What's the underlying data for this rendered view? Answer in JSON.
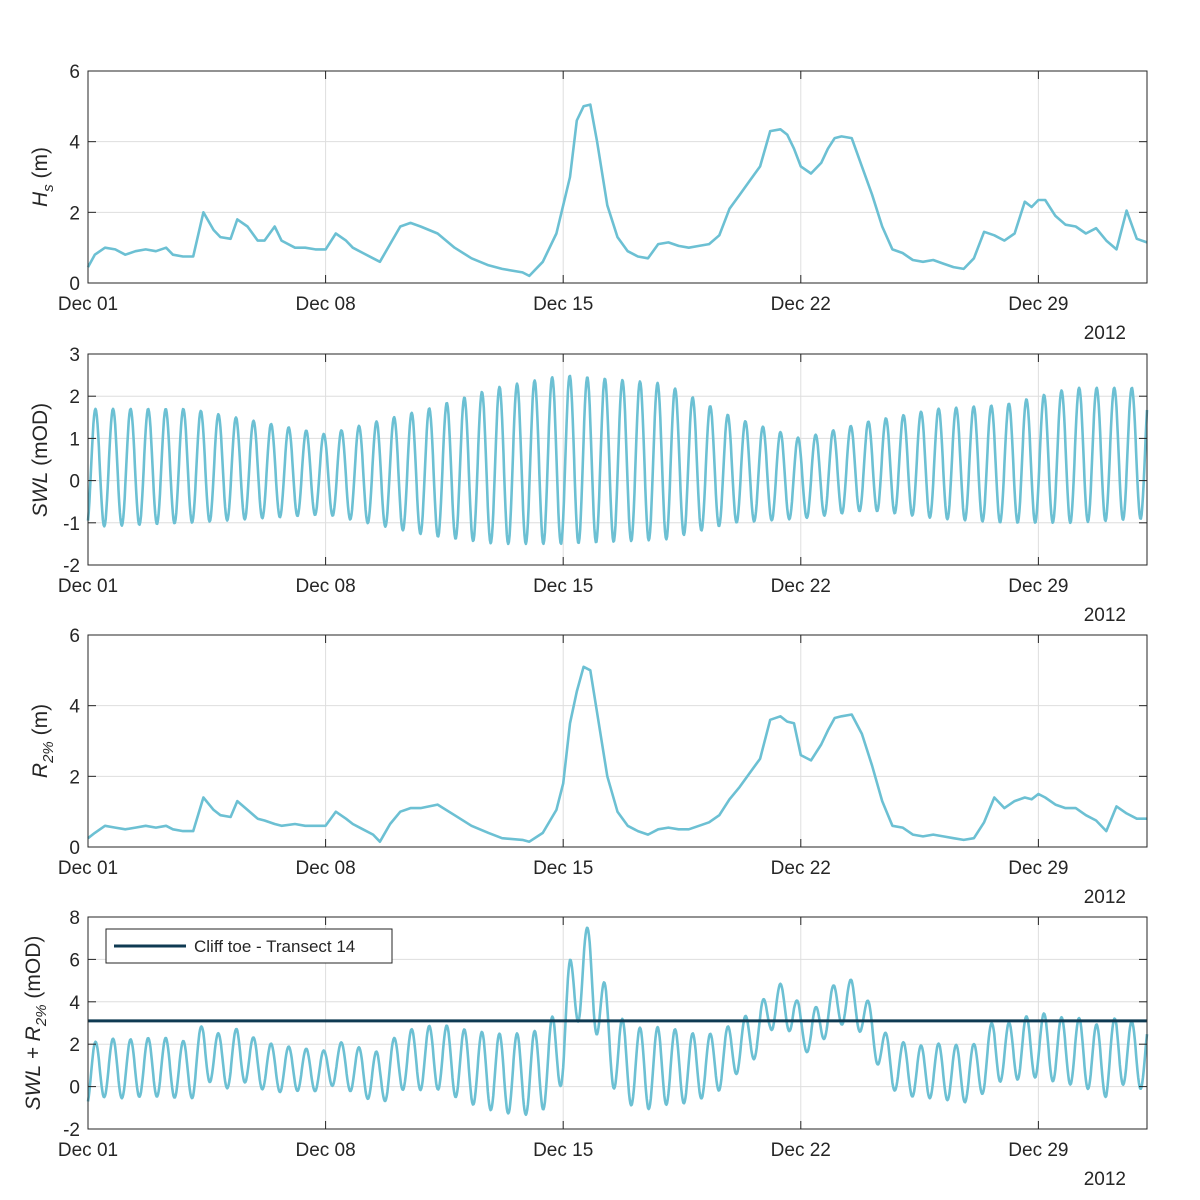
{
  "colors": {
    "series": "#6cc0d3",
    "threshold": "#0f3a52",
    "grid": "#dedede",
    "axis": "#262626"
  },
  "chart_data": [
    {
      "type": "line",
      "ylabel_main": "H",
      "ylabel_sub": "s",
      "ylabel_unit": " (m)",
      "xlim": [
        1,
        32.2
      ],
      "ylim": [
        0,
        6
      ],
      "yticks": [
        0,
        2,
        4,
        6
      ],
      "xticks": [
        {
          "pos": 1,
          "label": "Dec 01"
        },
        {
          "pos": 8,
          "label": "Dec 08"
        },
        {
          "pos": 15,
          "label": "Dec 15"
        },
        {
          "pos": 22,
          "label": "Dec 22"
        },
        {
          "pos": 29,
          "label": "Dec 29"
        }
      ],
      "year_label": "2012",
      "series": [
        {
          "name": "Hs",
          "x": [
            1.0,
            1.2,
            1.5,
            1.8,
            2.1,
            2.4,
            2.7,
            3.0,
            3.3,
            3.5,
            3.8,
            4.1,
            4.4,
            4.7,
            4.9,
            5.2,
            5.4,
            5.7,
            6.0,
            6.2,
            6.5,
            6.7,
            7.1,
            7.4,
            7.7,
            8.0,
            8.3,
            8.6,
            8.8,
            9.1,
            9.4,
            9.6,
            9.9,
            10.2,
            10.5,
            10.8,
            11.3,
            11.8,
            12.3,
            12.8,
            13.2,
            13.8,
            14.0,
            14.4,
            14.8,
            15.0,
            15.2,
            15.4,
            15.6,
            15.8,
            16.0,
            16.3,
            16.6,
            16.9,
            17.2,
            17.5,
            17.8,
            18.1,
            18.4,
            18.7,
            19.0,
            19.3,
            19.6,
            19.9,
            20.2,
            20.5,
            20.8,
            21.1,
            21.4,
            21.6,
            21.8,
            22.0,
            22.3,
            22.6,
            22.8,
            23.0,
            23.2,
            23.5,
            23.8,
            24.1,
            24.4,
            24.7,
            25.0,
            25.3,
            25.6,
            25.9,
            26.2,
            26.5,
            26.8,
            27.1,
            27.4,
            27.7,
            28.0,
            28.3,
            28.6,
            28.8,
            29.0,
            29.2,
            29.5,
            29.8,
            30.1,
            30.4,
            30.7,
            31.0,
            31.3,
            31.6,
            31.9,
            32.2
          ],
          "y": [
            0.45,
            0.8,
            1.0,
            0.95,
            0.8,
            0.9,
            0.95,
            0.9,
            1.0,
            0.8,
            0.75,
            0.75,
            2.0,
            1.5,
            1.3,
            1.25,
            1.8,
            1.6,
            1.2,
            1.2,
            1.6,
            1.2,
            1.0,
            1.0,
            0.95,
            0.95,
            1.4,
            1.2,
            1.0,
            0.85,
            0.7,
            0.6,
            1.1,
            1.6,
            1.7,
            1.6,
            1.4,
            1.0,
            0.7,
            0.5,
            0.4,
            0.3,
            0.2,
            0.6,
            1.4,
            2.2,
            3.0,
            4.6,
            5.0,
            5.05,
            4.0,
            2.2,
            1.3,
            0.9,
            0.75,
            0.7,
            1.1,
            1.15,
            1.05,
            1.0,
            1.05,
            1.1,
            1.35,
            2.1,
            2.5,
            2.9,
            3.3,
            4.3,
            4.35,
            4.2,
            3.8,
            3.3,
            3.1,
            3.4,
            3.8,
            4.1,
            4.15,
            4.1,
            3.3,
            2.5,
            1.6,
            0.95,
            0.85,
            0.65,
            0.6,
            0.65,
            0.55,
            0.45,
            0.4,
            0.7,
            1.45,
            1.35,
            1.2,
            1.4,
            2.3,
            2.15,
            2.35,
            2.35,
            1.9,
            1.65,
            1.6,
            1.4,
            1.55,
            1.2,
            0.95,
            2.05,
            1.25,
            1.15
          ]
        }
      ]
    },
    {
      "type": "line",
      "ylabel_main": "SWL",
      "ylabel_sub": "",
      "ylabel_unit": " (mOD)",
      "xlim": [
        1,
        32.2
      ],
      "ylim": [
        -2,
        3
      ],
      "yticks": [
        -2,
        -1,
        0,
        1,
        2,
        3
      ],
      "xticks": [
        {
          "pos": 1,
          "label": "Dec 01"
        },
        {
          "pos": 8,
          "label": "Dec 08"
        },
        {
          "pos": 15,
          "label": "Dec 15"
        },
        {
          "pos": 22,
          "label": "Dec 22"
        },
        {
          "pos": 29,
          "label": "Dec 29"
        }
      ],
      "year_label": "2012",
      "tidal_env": {
        "period_days": 0.5175,
        "phase_day": 1.22,
        "high_days": [
          1,
          4,
          8,
          11,
          13,
          15,
          18,
          20,
          22,
          24,
          26,
          28,
          30,
          32.2
        ],
        "high": [
          1.7,
          1.7,
          1.1,
          1.7,
          2.2,
          2.5,
          2.3,
          1.5,
          1.0,
          1.4,
          1.7,
          1.8,
          2.2,
          2.2
        ],
        "low_days": [
          1,
          4,
          8,
          11,
          13,
          15,
          18,
          20,
          22,
          24,
          26,
          28,
          30,
          32.2
        ],
        "low": [
          -1.1,
          -1.0,
          -0.8,
          -1.3,
          -1.5,
          -1.5,
          -1.4,
          -1.0,
          -0.9,
          -0.7,
          -0.9,
          -1.0,
          -1.0,
          -0.9
        ]
      }
    },
    {
      "type": "line",
      "ylabel_main": "R",
      "ylabel_sub": "2%",
      "ylabel_unit": " (m)",
      "xlim": [
        1,
        32.2
      ],
      "ylim": [
        0,
        6
      ],
      "yticks": [
        0,
        2,
        4,
        6
      ],
      "xticks": [
        {
          "pos": 1,
          "label": "Dec 01"
        },
        {
          "pos": 8,
          "label": "Dec 08"
        },
        {
          "pos": 15,
          "label": "Dec 15"
        },
        {
          "pos": 22,
          "label": "Dec 22"
        },
        {
          "pos": 29,
          "label": "Dec 29"
        }
      ],
      "year_label": "2012",
      "series": [
        {
          "name": "R2%",
          "x": [
            1.0,
            1.2,
            1.5,
            1.8,
            2.1,
            2.4,
            2.7,
            3.0,
            3.3,
            3.5,
            3.8,
            4.1,
            4.4,
            4.7,
            4.9,
            5.2,
            5.4,
            5.7,
            6.0,
            6.2,
            6.5,
            6.7,
            7.1,
            7.4,
            7.7,
            8.0,
            8.3,
            8.6,
            8.8,
            9.1,
            9.4,
            9.6,
            9.9,
            10.2,
            10.5,
            10.8,
            11.3,
            11.8,
            12.3,
            12.8,
            13.2,
            13.8,
            14.0,
            14.4,
            14.8,
            15.0,
            15.2,
            15.4,
            15.6,
            15.8,
            16.0,
            16.3,
            16.6,
            16.9,
            17.2,
            17.5,
            17.8,
            18.1,
            18.4,
            18.7,
            19.0,
            19.3,
            19.6,
            19.9,
            20.2,
            20.5,
            20.8,
            21.1,
            21.4,
            21.6,
            21.8,
            22.0,
            22.3,
            22.6,
            22.8,
            23.0,
            23.2,
            23.5,
            23.8,
            24.1,
            24.4,
            24.7,
            25.0,
            25.3,
            25.6,
            25.9,
            26.2,
            26.5,
            26.8,
            27.1,
            27.4,
            27.7,
            28.0,
            28.3,
            28.6,
            28.8,
            29.0,
            29.2,
            29.5,
            29.8,
            30.1,
            30.4,
            30.7,
            31.0,
            31.3,
            31.6,
            31.9,
            32.2
          ],
          "y": [
            0.25,
            0.4,
            0.6,
            0.55,
            0.5,
            0.55,
            0.6,
            0.55,
            0.6,
            0.5,
            0.45,
            0.45,
            1.4,
            1.05,
            0.9,
            0.85,
            1.3,
            1.05,
            0.8,
            0.75,
            0.65,
            0.6,
            0.65,
            0.6,
            0.6,
            0.6,
            1.0,
            0.8,
            0.65,
            0.5,
            0.35,
            0.15,
            0.65,
            1.0,
            1.1,
            1.1,
            1.2,
            0.9,
            0.6,
            0.4,
            0.25,
            0.2,
            0.15,
            0.4,
            1.05,
            1.8,
            3.5,
            4.4,
            5.1,
            5.0,
            3.8,
            2.0,
            1.0,
            0.6,
            0.45,
            0.35,
            0.5,
            0.55,
            0.5,
            0.5,
            0.6,
            0.7,
            0.9,
            1.35,
            1.7,
            2.1,
            2.5,
            3.6,
            3.7,
            3.55,
            3.5,
            2.6,
            2.45,
            2.9,
            3.3,
            3.65,
            3.7,
            3.75,
            3.2,
            2.3,
            1.3,
            0.6,
            0.55,
            0.35,
            0.3,
            0.35,
            0.3,
            0.25,
            0.2,
            0.25,
            0.7,
            1.4,
            1.1,
            1.3,
            1.4,
            1.35,
            1.5,
            1.4,
            1.2,
            1.1,
            1.1,
            0.9,
            0.75,
            0.45,
            1.15,
            0.95,
            0.8,
            0.8
          ]
        }
      ]
    },
    {
      "type": "line",
      "ylabel_main": "SWL + R",
      "ylabel_sub": "2%",
      "ylabel_unit": " (mOD)",
      "xlim": [
        1,
        32.2
      ],
      "ylim": [
        -2,
        8
      ],
      "yticks": [
        -2,
        0,
        2,
        4,
        6,
        8
      ],
      "xticks": [
        {
          "pos": 1,
          "label": "Dec 01"
        },
        {
          "pos": 8,
          "label": "Dec 08"
        },
        {
          "pos": 15,
          "label": "Dec 15"
        },
        {
          "pos": 22,
          "label": "Dec 22"
        },
        {
          "pos": 29,
          "label": "Dec 29"
        }
      ],
      "year_label": "2012",
      "threshold": {
        "label": "Cliff toe - Transect 14",
        "value": 3.1
      },
      "derived": "SWL + R2%"
    }
  ]
}
